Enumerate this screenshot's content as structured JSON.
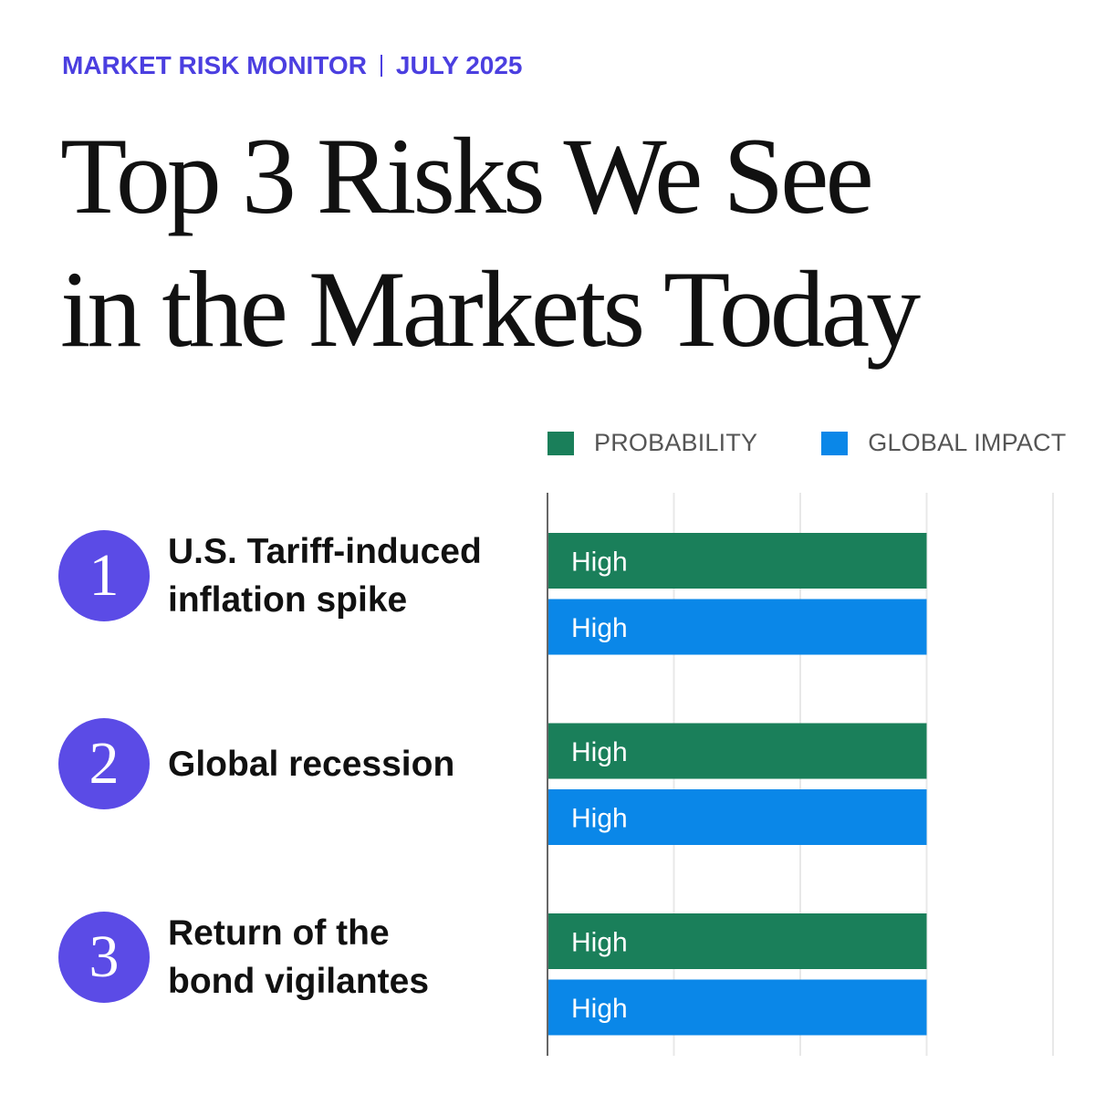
{
  "header": {
    "kicker_left": "MARKET RISK MONITOR",
    "kicker_right": "JULY 2025",
    "title_line1": "Top 3 Risks We See",
    "title_line2": "in the Markets Today"
  },
  "colors": {
    "accent": "#4b3fe0",
    "number_circle": "#5b4be6",
    "probability": "#1a7f5a",
    "impact": "#0a87e8"
  },
  "chart_data": {
    "type": "bar",
    "orientation": "horizontal",
    "scale_levels": 4,
    "legend": [
      "PROBABILITY",
      "GLOBAL IMPACT"
    ],
    "categories": [
      "U.S. Tariff-induced inflation spike",
      "Global recession",
      "Return of the bond vigilantes"
    ],
    "series": [
      {
        "name": "PROBABILITY",
        "values": [
          3,
          3,
          3
        ],
        "labels": [
          "High",
          "High",
          "High"
        ]
      },
      {
        "name": "GLOBAL IMPACT",
        "values": [
          3,
          3,
          3
        ],
        "labels": [
          "High",
          "High",
          "High"
        ]
      }
    ]
  },
  "risks": [
    {
      "number": "1",
      "label_line1": "U.S. Tariff-induced",
      "label_line2": "inflation spike"
    },
    {
      "number": "2",
      "label_line1": "Global recession",
      "label_line2": ""
    },
    {
      "number": "3",
      "label_line1": "Return of the",
      "label_line2": "bond vigilantes"
    }
  ]
}
